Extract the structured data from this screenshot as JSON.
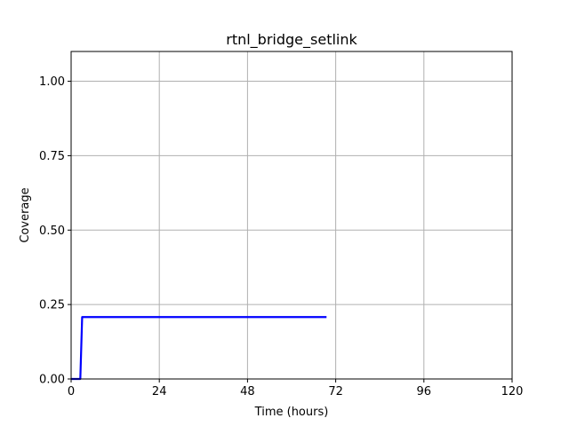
{
  "chart_data": {
    "type": "line",
    "title": "rtnl_bridge_setlink",
    "xlabel": "Time (hours)",
    "ylabel": "Coverage",
    "xlim": [
      0,
      120
    ],
    "ylim": [
      0,
      1.1
    ],
    "xticks": [
      0,
      24,
      48,
      72,
      96,
      120
    ],
    "xtick_labels": [
      "0",
      "24",
      "48",
      "72",
      "96",
      "120"
    ],
    "yticks": [
      0,
      0.25,
      0.5,
      0.75,
      1.0
    ],
    "ytick_labels": [
      "0.00",
      "0.25",
      "0.50",
      "0.75",
      "1.00"
    ],
    "grid": true,
    "series": [
      {
        "color": "#0000ff",
        "x": [
          0,
          2.5,
          3,
          69.5
        ],
        "y": [
          0,
          0,
          0.208,
          0.208
        ]
      }
    ]
  }
}
